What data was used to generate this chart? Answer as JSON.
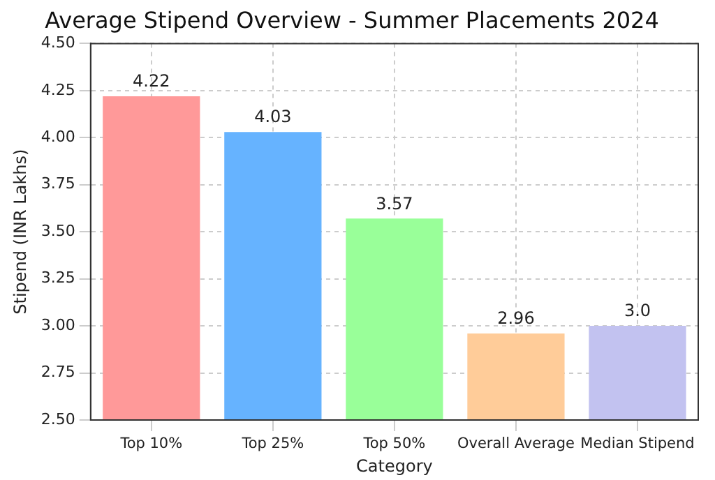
{
  "chart_data": {
    "type": "bar",
    "title": "Average Stipend Overview - Summer Placements 2024",
    "xlabel": "Category",
    "ylabel": "Stipend (INR Lakhs)",
    "categories": [
      "Top 10%",
      "Top 25%",
      "Top 50%",
      "Overall Average",
      "Median Stipend"
    ],
    "values": [
      4.22,
      4.03,
      3.57,
      2.96,
      3.0
    ],
    "value_labels": [
      "4.22",
      "4.03",
      "3.57",
      "2.96",
      "3.0"
    ],
    "colors": [
      "#ff9999",
      "#66b3ff",
      "#99ff99",
      "#ffcc99",
      "#c2c2f0"
    ],
    "ylim": [
      2.5,
      4.5
    ],
    "yticks": [
      {
        "value": 2.5,
        "label": "2.50"
      },
      {
        "value": 2.75,
        "label": "2.75"
      },
      {
        "value": 3.0,
        "label": "3.00"
      },
      {
        "value": 3.25,
        "label": "3.25"
      },
      {
        "value": 3.5,
        "label": "3.50"
      },
      {
        "value": 3.75,
        "label": "3.75"
      },
      {
        "value": 4.0,
        "label": "4.00"
      },
      {
        "value": 4.25,
        "label": "4.25"
      },
      {
        "value": 4.5,
        "label": "4.50"
      }
    ],
    "grid": true,
    "legend": false
  }
}
